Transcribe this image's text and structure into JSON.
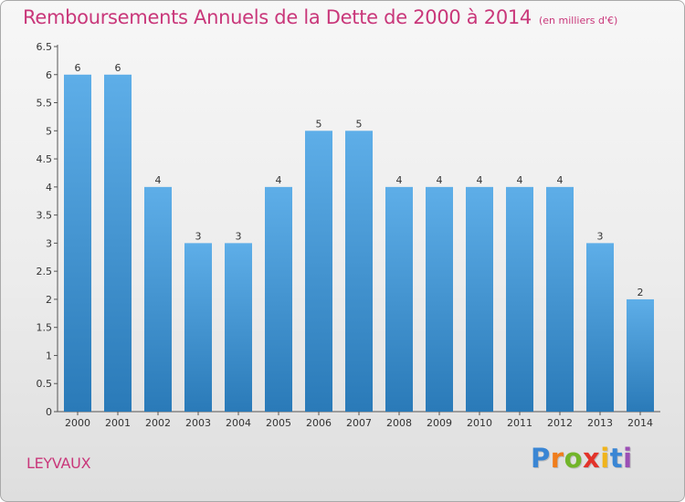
{
  "title": "Remboursements Annuels de la Dette de 2000 à 2014",
  "unit": "(en milliers d'€)",
  "place_name": "LEYVAUX",
  "logo": {
    "letters": [
      "P",
      "r",
      "o",
      "x",
      "i",
      "t",
      "i"
    ],
    "colors": [
      "#3a86d4",
      "#f07d1c",
      "#72b52a",
      "#e2332a",
      "#f0b41c",
      "#3a86d4",
      "#9b4fb5"
    ]
  },
  "colors": {
    "accent": "#c9377a",
    "bar_top": "#5eaee8",
    "bar_bottom": "#2a7ab8"
  },
  "chart_data": {
    "type": "bar",
    "title": "Remboursements Annuels de la Dette de 2000 à 2014",
    "xlabel": "",
    "ylabel": "",
    "categories": [
      "2000",
      "2001",
      "2002",
      "2003",
      "2004",
      "2005",
      "2006",
      "2007",
      "2008",
      "2009",
      "2010",
      "2011",
      "2012",
      "2013",
      "2014"
    ],
    "values": [
      6,
      6,
      4,
      3,
      3,
      4,
      5,
      5,
      4,
      4,
      4,
      4,
      4,
      3,
      2
    ],
    "value_labels": [
      "6",
      "6",
      "4",
      "3",
      "3",
      "4",
      "5",
      "5",
      "4",
      "4",
      "4",
      "4",
      "4",
      "3",
      "2"
    ],
    "yticks": [
      "0",
      "0.5",
      "1",
      "1.5",
      "2",
      "2.5",
      "3",
      "3.5",
      "4",
      "4.5",
      "5",
      "5.5",
      "6",
      "6.5"
    ],
    "ylim": [
      0,
      6.5
    ],
    "grid": false,
    "legend": "none"
  }
}
